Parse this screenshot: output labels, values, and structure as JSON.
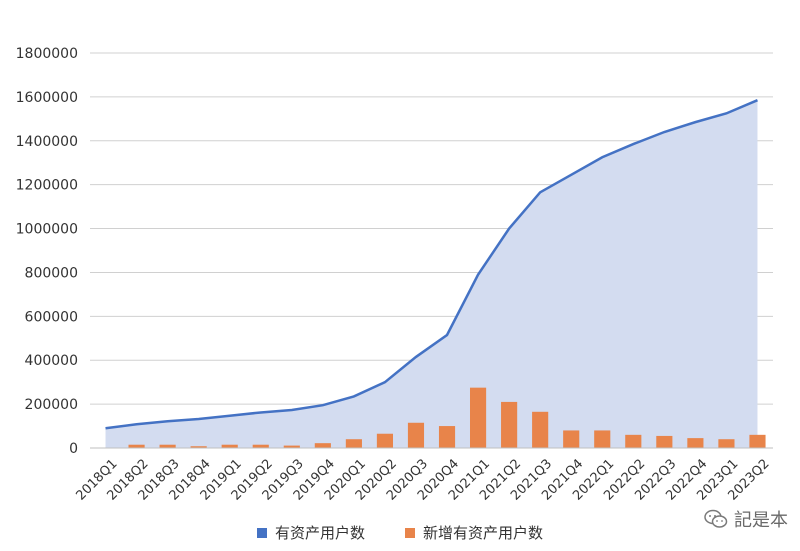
{
  "chart_data": {
    "type": "area",
    "categories": [
      "2018Q1",
      "2018Q2",
      "2018Q3",
      "2018Q4",
      "2019Q1",
      "2019Q2",
      "2019Q3",
      "2019Q4",
      "2020Q1",
      "2020Q2",
      "2020Q3",
      "2020Q4",
      "2021Q1",
      "2021Q2",
      "2021Q3",
      "2021Q4",
      "2022Q1",
      "2022Q2",
      "2022Q3",
      "2022Q4",
      "2023Q1",
      "2023Q2"
    ],
    "ylim": [
      0,
      1800000
    ],
    "yticks": [
      0,
      200000,
      400000,
      600000,
      800000,
      1000000,
      1200000,
      1400000,
      1600000,
      1800000
    ],
    "grid": true,
    "legend_position": "bottom",
    "series": [
      {
        "name": "有资产用户数",
        "kind": "line-area",
        "color": "#4472c4",
        "fill": "#d3dcf0",
        "values": [
          90000,
          108000,
          122000,
          132000,
          147000,
          162000,
          173000,
          195000,
          235000,
          300000,
          415000,
          515000,
          790000,
          1000000,
          1165000,
          1245000,
          1325000,
          1385000,
          1440000,
          1485000,
          1525000,
          1585000
        ]
      },
      {
        "name": "新增有资产用户数",
        "kind": "bar",
        "color": "#e8844a",
        "values": [
          0,
          15000,
          15000,
          8000,
          15000,
          15000,
          11000,
          22000,
          40000,
          65000,
          115000,
          100000,
          275000,
          210000,
          165000,
          80000,
          80000,
          60000,
          55000,
          45000,
          40000,
          60000
        ]
      }
    ]
  },
  "legend": {
    "items": [
      {
        "label": "有资产用户数",
        "color": "#4472c4"
      },
      {
        "label": "新增有资产用户数",
        "color": "#e8844a"
      }
    ]
  },
  "watermark": {
    "text": "記是本",
    "icon": "wechat-icon"
  }
}
